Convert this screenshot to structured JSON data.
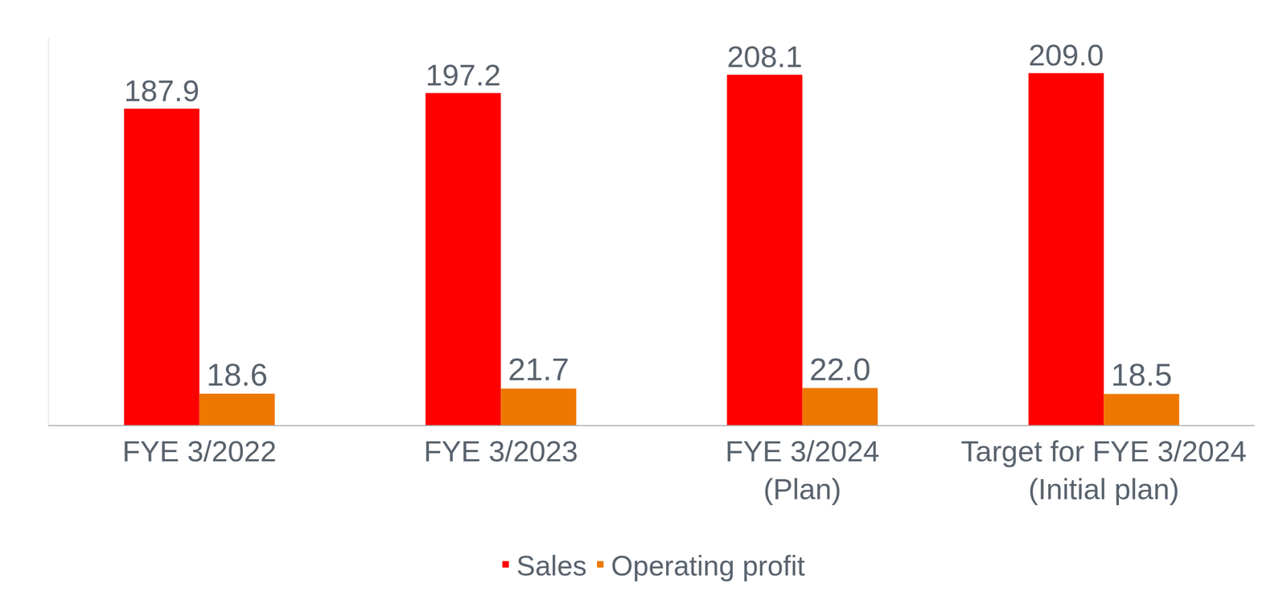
{
  "chart_data": {
    "type": "bar",
    "categories": [
      "FYE 3/2022",
      "FYE 3/2023",
      "FYE 3/2024 (Plan)",
      "Target for FYE 3/2024 (Initial plan)"
    ],
    "series": [
      {
        "name": "Sales",
        "color": "#ff0000",
        "values": [
          187.9,
          197.2,
          208.1,
          209.0
        ],
        "value_labels": [
          "187.9",
          "197.2",
          "208.1",
          "209.0"
        ]
      },
      {
        "name": "Operating profit",
        "color": "#ee7700",
        "values": [
          18.6,
          21.7,
          22.0,
          18.5
        ],
        "value_labels": [
          "18.6",
          "21.7",
          "22.0",
          "18.5"
        ]
      }
    ],
    "ylim": [
      0,
      230
    ],
    "yticks": [],
    "grid": false,
    "data_labels": true,
    "tick_labels": "x",
    "legend": "bottom"
  }
}
